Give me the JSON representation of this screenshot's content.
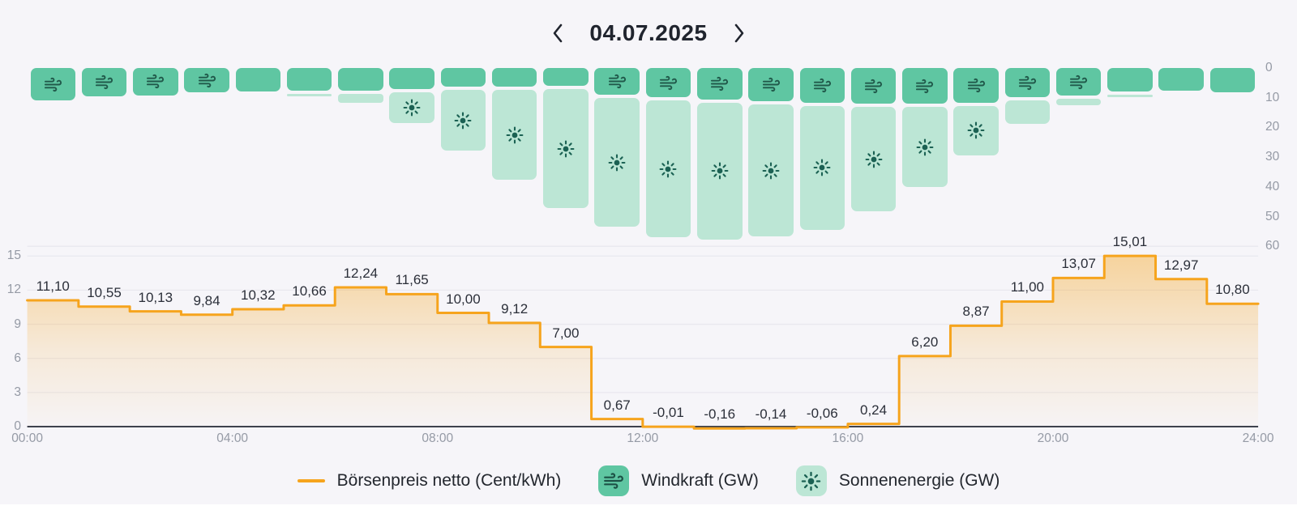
{
  "header": {
    "date": "04.07.2025",
    "prev": "previous-day",
    "next": "next-day"
  },
  "chart_data": [
    {
      "type": "bar",
      "stacked": true,
      "orientation": "hanging-from-top",
      "x": [
        0,
        1,
        2,
        3,
        4,
        5,
        6,
        7,
        8,
        9,
        10,
        11,
        12,
        13,
        14,
        15,
        16,
        17,
        18,
        19,
        20,
        21,
        22,
        23
      ],
      "series": [
        {
          "name": "Windkraft (GW)",
          "color": "#5fc6a2",
          "values": [
            11.0,
            9.6,
            9.2,
            8.3,
            8.0,
            7.7,
            7.7,
            7.2,
            6.4,
            6.4,
            6.1,
            9.1,
            9.9,
            10.5,
            11.3,
            11.6,
            12.1,
            12.1,
            11.8,
            9.9,
            9.4,
            8.0,
            7.7,
            8.3
          ],
          "icon": "wind-icon",
          "icon_hours": [
            0,
            1,
            2,
            3,
            11,
            12,
            13,
            14,
            15,
            16,
            17,
            18,
            19,
            20
          ]
        },
        {
          "name": "Sonnenenergie (GW)",
          "color": "#bce6d5",
          "values": [
            0,
            0,
            0,
            0,
            0,
            1.3,
            3.9,
            11.3,
            21.4,
            31.2,
            41.0,
            44.3,
            47.0,
            47.2,
            45.5,
            43.0,
            36.2,
            27.9,
            17.5,
            9.0,
            3.2,
            1.6,
            0,
            0
          ],
          "icon": "sun-icon",
          "icon_hours": [
            7,
            8,
            9,
            10,
            11,
            12,
            13,
            14,
            15,
            16,
            17,
            18
          ]
        }
      ],
      "y_axis": {
        "side": "right",
        "inverted": true,
        "ticks": [
          0,
          10,
          20,
          30,
          40,
          50,
          60
        ],
        "unit": "GW"
      }
    },
    {
      "type": "line",
      "style": "step-area",
      "name": "Börsenpreis netto (Cent/kWh)",
      "color": "#f6a41d",
      "values": [
        11.1,
        10.55,
        10.13,
        9.84,
        10.32,
        10.66,
        12.24,
        11.65,
        10.0,
        9.12,
        7.0,
        0.67,
        -0.01,
        -0.16,
        -0.14,
        -0.06,
        0.24,
        6.2,
        8.87,
        11.0,
        13.07,
        15.01,
        12.97,
        10.8
      ],
      "labels": [
        "11,10",
        "10,55",
        "10,13",
        "9,84",
        "10,32",
        "10,66",
        "12,24",
        "11,65",
        "10,00",
        "9,12",
        "7,00",
        "0,67",
        "-0,01",
        "-0,16",
        "-0,14",
        "-0,06",
        "0,24",
        "6,20",
        "8,87",
        "11,00",
        "13,07",
        "15,01",
        "12,97",
        "10,80"
      ],
      "ylim": [
        0,
        15
      ],
      "yticks": [
        15,
        12,
        9,
        6,
        3,
        0
      ],
      "xticks": [
        "00:00",
        "04:00",
        "08:00",
        "12:00",
        "16:00",
        "20:00",
        "24:00"
      ],
      "grid": true
    }
  ],
  "legend": [
    {
      "label": "Börsenpreis netto (Cent/kWh)",
      "marker": "line-dash",
      "color": "#f6a41d"
    },
    {
      "label": "Windkraft (GW)",
      "marker": "wind-chip",
      "color": "#5fc6a2"
    },
    {
      "label": "Sonnenenergie (GW)",
      "marker": "sun-chip",
      "color": "#bce6d5"
    }
  ],
  "colors": {
    "background": "#f6f5f9",
    "wind": "#5fc6a2",
    "solar": "#bce6d5",
    "price": "#f6a41d",
    "axis_text": "#959aa5",
    "label_text": "#2b2f39",
    "axis_line": "#3e424d"
  }
}
